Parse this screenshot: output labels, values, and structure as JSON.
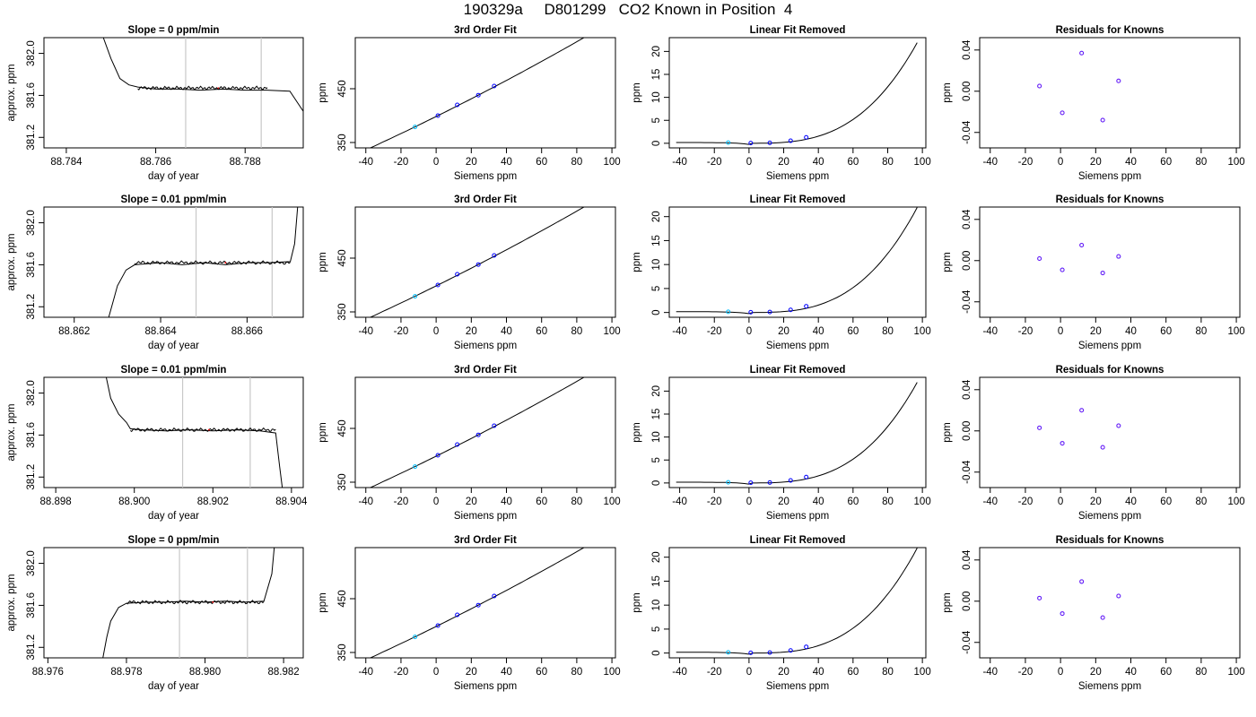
{
  "title": "190329a     D801299   CO2 Known in Position  4",
  "colors": {
    "line": "#000000",
    "band": "#c8c8c8",
    "point_primary": "#0000ff",
    "point_secondary": "#a020f0",
    "point_alt": "#00bfff",
    "marker": "#ff0000"
  },
  "chart_data": [
    {
      "row": 0,
      "col": 0,
      "type": "line",
      "title": "Slope =  0  ppm/min",
      "xlabel": "day of year",
      "ylabel": "approx. ppm",
      "xticks": [
        "88.784",
        "88.786",
        "88.788"
      ],
      "xtick_values": [
        88.784,
        88.786,
        88.788
      ],
      "yticks": [
        "381.2",
        "381.6",
        "382.0"
      ],
      "ytick_values": [
        381.2,
        381.6,
        382.0
      ],
      "xlim": [
        88.7835,
        88.7893
      ],
      "ylim": [
        381.1,
        382.15
      ],
      "x": [
        88.7847,
        88.785,
        88.7852,
        88.7854,
        88.7856,
        88.7858,
        88.786,
        88.7865,
        88.787,
        88.7875,
        88.788,
        88.7885,
        88.789,
        88.79
      ],
      "y": [
        382.3,
        381.95,
        381.76,
        381.7,
        381.68,
        381.67,
        381.66,
        381.66,
        381.65,
        381.66,
        381.65,
        381.65,
        381.64,
        381.0
      ],
      "bands": [
        88.78667,
        88.78836
      ],
      "marker_x": 88.7874
    },
    {
      "row": 0,
      "col": 1,
      "type": "line-scatter",
      "title": "3rd Order Fit",
      "xlabel": "Siemens ppm",
      "ylabel": "ppm",
      "xticks": [
        "-40",
        "-20",
        "0",
        "20",
        "40",
        "60",
        "80",
        "100"
      ],
      "xtick_values": [
        -40,
        -20,
        0,
        20,
        40,
        60,
        80,
        100
      ],
      "yticks": [
        "350",
        "450"
      ],
      "ytick_values": [
        350,
        450
      ],
      "xlim": [
        -46,
        102
      ],
      "ylim": [
        340,
        545
      ],
      "x": [
        -12,
        1,
        12,
        24,
        33
      ],
      "y": [
        379,
        400,
        420,
        438,
        455
      ]
    },
    {
      "row": 0,
      "col": 2,
      "type": "line-scatter",
      "title": "Linear Fit Removed",
      "xlabel": "Siemens ppm",
      "ylabel": "ppm",
      "xticks": [
        "-40",
        "-20",
        "0",
        "20",
        "40",
        "60",
        "80",
        "100"
      ],
      "xtick_values": [
        -40,
        -20,
        0,
        20,
        40,
        60,
        80,
        100
      ],
      "yticks": [
        "0",
        "5",
        "10",
        "15",
        "20"
      ],
      "ytick_values": [
        0,
        5,
        10,
        15,
        20
      ],
      "xlim": [
        -46,
        102
      ],
      "ylim": [
        -1,
        23
      ],
      "x": [
        -12,
        1,
        12,
        24,
        33
      ],
      "y": [
        0.15,
        0.05,
        0.1,
        0.55,
        1.3
      ]
    },
    {
      "row": 0,
      "col": 3,
      "type": "scatter",
      "title": "Residuals for Knowns",
      "xlabel": "Siemens ppm",
      "ylabel": "ppm",
      "xticks": [
        "-40",
        "-20",
        "0",
        "20",
        "40",
        "60",
        "80",
        "100"
      ],
      "xtick_values": [
        -40,
        -20,
        0,
        20,
        40,
        60,
        80,
        100
      ],
      "yticks": [
        "-0.04",
        "0.00",
        "0.04"
      ],
      "ytick_values": [
        -0.04,
        0.0,
        0.04
      ],
      "xlim": [
        -46,
        102
      ],
      "ylim": [
        -0.055,
        0.052
      ],
      "x": [
        -12,
        1,
        12,
        24,
        33
      ],
      "y": [
        0.005,
        -0.021,
        0.037,
        -0.028,
        0.01
      ]
    },
    {
      "row": 1,
      "col": 0,
      "type": "line",
      "title": "Slope =  0.01  ppm/min",
      "xlabel": "day of year",
      "ylabel": "approx. ppm",
      "xticks": [
        "88.862",
        "88.864",
        "88.866"
      ],
      "xtick_values": [
        88.862,
        88.864,
        88.866
      ],
      "yticks": [
        "381.2",
        "381.6",
        "382.0"
      ],
      "ytick_values": [
        381.2,
        381.6,
        382.0
      ],
      "xlim": [
        88.8613,
        88.8673
      ],
      "ylim": [
        381.1,
        382.15
      ],
      "x": [
        88.8628,
        88.8629,
        88.863,
        88.8632,
        88.8634,
        88.864,
        88.8645,
        88.865,
        88.8655,
        88.866,
        88.8665,
        88.867,
        88.8671,
        88.8672
      ],
      "y": [
        381.1,
        381.25,
        381.4,
        381.55,
        381.6,
        381.62,
        381.6,
        381.62,
        381.6,
        381.62,
        381.62,
        381.63,
        381.8,
        382.3
      ],
      "bands": [
        88.86482,
        88.86658
      ],
      "marker_x": 88.8655
    },
    {
      "row": 1,
      "col": 1,
      "type": "line-scatter",
      "title": "3rd Order Fit",
      "xlabel": "Siemens ppm",
      "ylabel": "ppm",
      "xticks": [
        "-40",
        "-20",
        "0",
        "20",
        "40",
        "60",
        "80",
        "100"
      ],
      "xtick_values": [
        -40,
        -20,
        0,
        20,
        40,
        60,
        80,
        100
      ],
      "yticks": [
        "350",
        "450"
      ],
      "ytick_values": [
        350,
        450
      ],
      "xlim": [
        -46,
        102
      ],
      "ylim": [
        340,
        545
      ],
      "x": [
        -12,
        1,
        12,
        24,
        33
      ],
      "y": [
        379,
        400,
        420,
        438,
        455
      ]
    },
    {
      "row": 1,
      "col": 2,
      "type": "line-scatter",
      "title": "Linear Fit Removed",
      "xlabel": "Siemens ppm",
      "ylabel": "ppm",
      "xticks": [
        "-40",
        "-20",
        "0",
        "20",
        "40",
        "60",
        "80",
        "100"
      ],
      "xtick_values": [
        -40,
        -20,
        0,
        20,
        40,
        60,
        80,
        100
      ],
      "yticks": [
        "0",
        "5",
        "10",
        "15",
        "20"
      ],
      "ytick_values": [
        0,
        5,
        10,
        15,
        20
      ],
      "xlim": [
        -46,
        102
      ],
      "ylim": [
        -1,
        22
      ],
      "x": [
        -12,
        1,
        12,
        24,
        33
      ],
      "y": [
        0.15,
        0.05,
        0.1,
        0.55,
        1.3
      ]
    },
    {
      "row": 1,
      "col": 3,
      "type": "scatter",
      "title": "Residuals for Knowns",
      "xlabel": "Siemens ppm",
      "ylabel": "ppm",
      "xticks": [
        "-40",
        "-20",
        "0",
        "20",
        "40",
        "60",
        "80",
        "100"
      ],
      "xtick_values": [
        -40,
        -20,
        0,
        20,
        40,
        60,
        80,
        100
      ],
      "yticks": [
        "-0.04",
        "0.00",
        "0.04"
      ],
      "ytick_values": [
        -0.04,
        0.0,
        0.04
      ],
      "xlim": [
        -46,
        102
      ],
      "ylim": [
        -0.055,
        0.052
      ],
      "x": [
        -12,
        1,
        12,
        24,
        33
      ],
      "y": [
        0.002,
        -0.009,
        0.015,
        -0.012,
        0.004
      ]
    },
    {
      "row": 2,
      "col": 0,
      "type": "line",
      "title": "Slope =  0.01  ppm/min",
      "xlabel": "day of year",
      "ylabel": "approx. ppm",
      "xticks": [
        "88.898",
        "88.900",
        "88.902",
        "88.904"
      ],
      "xtick_values": [
        88.898,
        88.9,
        88.902,
        88.904
      ],
      "yticks": [
        "381.2",
        "381.6",
        "382.0"
      ],
      "ytick_values": [
        381.2,
        381.6,
        382.0
      ],
      "xlim": [
        88.8977,
        88.9043
      ],
      "ylim": [
        381.1,
        382.15
      ],
      "x": [
        88.8992,
        88.8994,
        88.8996,
        88.8998,
        88.8999,
        88.9002,
        88.9008,
        88.9014,
        88.902,
        88.9026,
        88.9032,
        88.9036,
        88.9037,
        88.9038
      ],
      "y": [
        382.3,
        381.95,
        381.8,
        381.72,
        381.66,
        381.65,
        381.64,
        381.65,
        381.64,
        381.65,
        381.64,
        381.62,
        381.3,
        381.0
      ],
      "bands": [
        88.90123,
        88.90295
      ],
      "marker_x": 88.9019
    },
    {
      "row": 2,
      "col": 1,
      "type": "line-scatter",
      "title": "3rd Order Fit",
      "xlabel": "Siemens ppm",
      "ylabel": "ppm",
      "xticks": [
        "-40",
        "-20",
        "0",
        "20",
        "40",
        "60",
        "80",
        "100"
      ],
      "xtick_values": [
        -40,
        -20,
        0,
        20,
        40,
        60,
        80,
        100
      ],
      "yticks": [
        "350",
        "450"
      ],
      "ytick_values": [
        350,
        450
      ],
      "xlim": [
        -46,
        102
      ],
      "ylim": [
        340,
        545
      ],
      "x": [
        -12,
        1,
        12,
        24,
        33
      ],
      "y": [
        379,
        400,
        420,
        438,
        455
      ]
    },
    {
      "row": 2,
      "col": 2,
      "type": "line-scatter",
      "title": "Linear Fit Removed",
      "xlabel": "Siemens ppm",
      "ylabel": "ppm",
      "xticks": [
        "-40",
        "-20",
        "0",
        "20",
        "40",
        "60",
        "80",
        "100"
      ],
      "xtick_values": [
        -40,
        -20,
        0,
        20,
        40,
        60,
        80,
        100
      ],
      "yticks": [
        "0",
        "5",
        "10",
        "15",
        "20"
      ],
      "ytick_values": [
        0,
        5,
        10,
        15,
        20
      ],
      "xlim": [
        -46,
        102
      ],
      "ylim": [
        -1,
        23
      ],
      "x": [
        -12,
        1,
        12,
        24,
        33
      ],
      "y": [
        0.15,
        0.05,
        0.1,
        0.55,
        1.3
      ]
    },
    {
      "row": 2,
      "col": 3,
      "type": "scatter",
      "title": "Residuals for Knowns",
      "xlabel": "Siemens ppm",
      "ylabel": "ppm",
      "xticks": [
        "-40",
        "-20",
        "0",
        "20",
        "40",
        "60",
        "80",
        "100"
      ],
      "xtick_values": [
        -40,
        -20,
        0,
        20,
        40,
        60,
        80,
        100
      ],
      "yticks": [
        "-0.04",
        "0.00",
        "0.04"
      ],
      "ytick_values": [
        -0.04,
        0.0,
        0.04
      ],
      "xlim": [
        -46,
        102
      ],
      "ylim": [
        -0.055,
        0.052
      ],
      "x": [
        -12,
        1,
        12,
        24,
        33
      ],
      "y": [
        0.003,
        -0.012,
        0.02,
        -0.016,
        0.005
      ]
    },
    {
      "row": 3,
      "col": 0,
      "type": "line",
      "title": "Slope =  0  ppm/min",
      "xlabel": "day of year",
      "ylabel": "approx. ppm",
      "xticks": [
        "88.976",
        "88.978",
        "88.980",
        "88.982"
      ],
      "xtick_values": [
        88.976,
        88.978,
        88.98,
        88.982
      ],
      "yticks": [
        "381.2",
        "381.6",
        "382.0"
      ],
      "ytick_values": [
        381.2,
        381.6,
        382.0
      ],
      "xlim": [
        88.9759,
        88.9825
      ],
      "ylim": [
        381.1,
        382.15
      ],
      "x": [
        88.9774,
        88.9775,
        88.9776,
        88.9778,
        88.978,
        88.9785,
        88.979,
        88.9795,
        88.98,
        88.9805,
        88.981,
        88.9815,
        88.9817,
        88.9818
      ],
      "y": [
        381.1,
        381.3,
        381.45,
        381.58,
        381.62,
        381.63,
        381.63,
        381.64,
        381.63,
        381.64,
        381.63,
        381.64,
        381.9,
        382.3
      ],
      "bands": [
        88.97935,
        88.98108
      ],
      "marker_x": 88.9802
    },
    {
      "row": 3,
      "col": 1,
      "type": "line-scatter",
      "title": "3rd Order Fit",
      "xlabel": "Siemens ppm",
      "ylabel": "ppm",
      "xticks": [
        "-40",
        "-20",
        "0",
        "20",
        "40",
        "60",
        "80",
        "100"
      ],
      "xtick_values": [
        -40,
        -20,
        0,
        20,
        40,
        60,
        80,
        100
      ],
      "yticks": [
        "350",
        "450"
      ],
      "ytick_values": [
        350,
        450
      ],
      "xlim": [
        -46,
        102
      ],
      "ylim": [
        340,
        545
      ],
      "x": [
        -12,
        1,
        12,
        24,
        33
      ],
      "y": [
        379,
        400,
        420,
        438,
        455
      ]
    },
    {
      "row": 3,
      "col": 2,
      "type": "line-scatter",
      "title": "Linear Fit Removed",
      "xlabel": "Siemens ppm",
      "ylabel": "ppm",
      "xticks": [
        "-40",
        "-20",
        "0",
        "20",
        "40",
        "60",
        "80",
        "100"
      ],
      "xtick_values": [
        -40,
        -20,
        0,
        20,
        40,
        60,
        80,
        100
      ],
      "yticks": [
        "0",
        "5",
        "10",
        "15",
        "20"
      ],
      "ytick_values": [
        0,
        5,
        10,
        15,
        20
      ],
      "xlim": [
        -46,
        102
      ],
      "ylim": [
        -1,
        22
      ],
      "x": [
        -12,
        1,
        12,
        24,
        33
      ],
      "y": [
        0.15,
        0.05,
        0.1,
        0.55,
        1.3
      ]
    },
    {
      "row": 3,
      "col": 3,
      "type": "scatter",
      "title": "Residuals for Knowns",
      "xlabel": "Siemens ppm",
      "ylabel": "ppm",
      "xticks": [
        "-40",
        "-20",
        "0",
        "20",
        "40",
        "60",
        "80",
        "100"
      ],
      "xtick_values": [
        -40,
        -20,
        0,
        20,
        40,
        60,
        80,
        100
      ],
      "yticks": [
        "-0.04",
        "0.00",
        "0.04"
      ],
      "ytick_values": [
        -0.04,
        0.0,
        0.04
      ],
      "xlim": [
        -46,
        102
      ],
      "ylim": [
        -0.055,
        0.052
      ],
      "x": [
        -12,
        1,
        12,
        24,
        33
      ],
      "y": [
        0.003,
        -0.012,
        0.019,
        -0.016,
        0.005
      ]
    }
  ]
}
